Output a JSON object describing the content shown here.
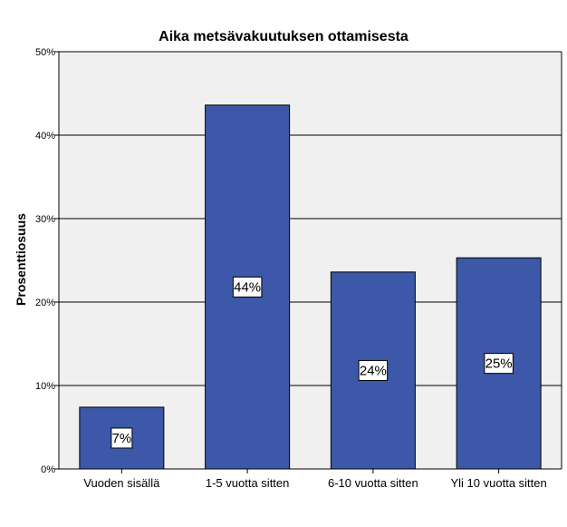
{
  "chart_data": {
    "type": "bar",
    "title": "Aika metsävakuutuksen ottamisesta",
    "xlabel": "",
    "ylabel": "Prosenttiosuus",
    "categories": [
      "Vuoden sisällä",
      "1-5 vuotta sitten",
      "6-10 vuotta sitten",
      "Yli 10 vuotta sitten"
    ],
    "values": [
      7.4,
      43.6,
      23.6,
      25.3
    ],
    "data_labels": [
      "7%",
      "44%",
      "24%",
      "25%"
    ],
    "ylim": [
      0,
      50
    ],
    "yticks": [
      0,
      10,
      20,
      30,
      40,
      50
    ],
    "ytick_labels": [
      "0%",
      "10%",
      "20%",
      "30%",
      "40%",
      "50%"
    ],
    "grid": true,
    "legend": "none",
    "colors": {
      "bar": "#3d58a8",
      "bar_edge": "#000000",
      "plot_background": "#f0f0f0",
      "gridline": "#000000"
    }
  }
}
